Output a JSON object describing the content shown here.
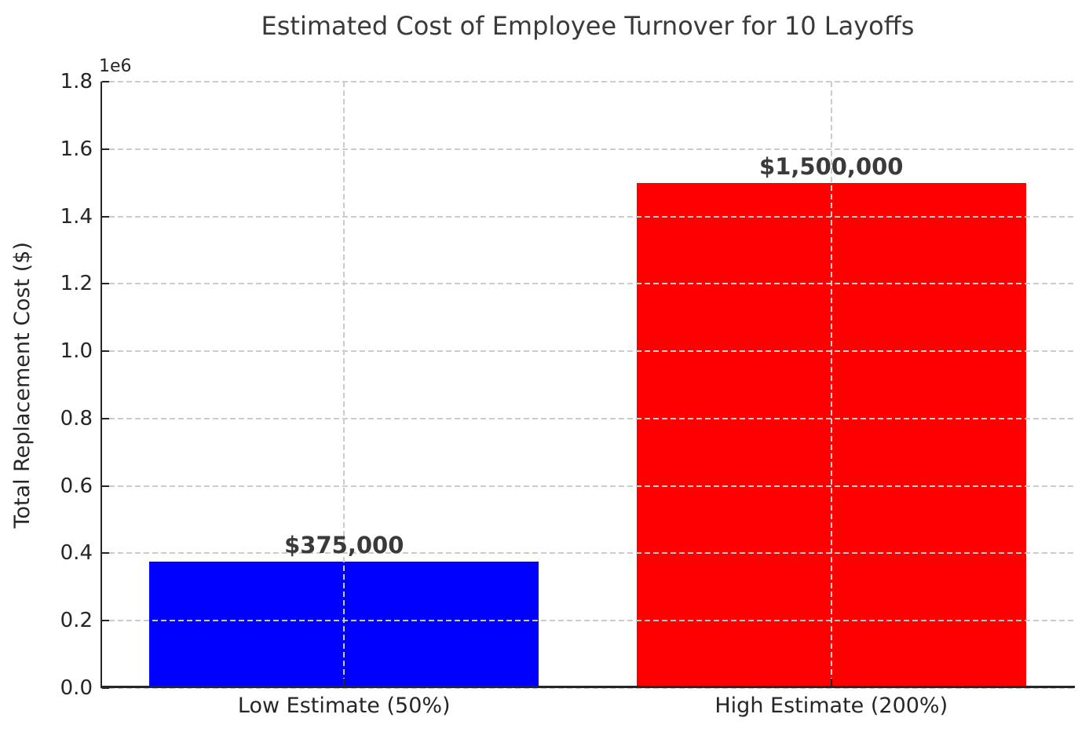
{
  "chart_data": {
    "type": "bar",
    "title": "Estimated Cost of Employee Turnover for 10 Layoffs",
    "xlabel": "",
    "ylabel": "Total Replacement Cost ($)",
    "y_offset_text": "1e6",
    "categories": [
      "Low Estimate (50%)",
      "High Estimate (200%)"
    ],
    "values": [
      375000,
      1500000
    ],
    "bar_colors": [
      "#0000ff",
      "#ff0000"
    ],
    "bar_value_labels": [
      "$375,000",
      "$1,500,000"
    ],
    "ylim": [
      0,
      1800000
    ],
    "ytick_values": [
      0,
      200000,
      400000,
      600000,
      800000,
      1000000,
      1200000,
      1400000,
      1600000,
      1800000
    ],
    "ytick_labels": [
      "0.0",
      "0.2",
      "0.4",
      "0.6",
      "0.8",
      "1.0",
      "1.2",
      "1.4",
      "1.6",
      "1.8"
    ],
    "bar_width_fraction": 0.8,
    "grid": "dashed, both axes, drawn above bars",
    "legend_position": "none",
    "styles": {
      "background": "#ffffff",
      "grid_color": "#cccccc",
      "axis_color": "#262626",
      "tick_text_color": "#262626",
      "title_color": "#3a3a3a",
      "value_label_color": "#3a3a3a"
    }
  }
}
